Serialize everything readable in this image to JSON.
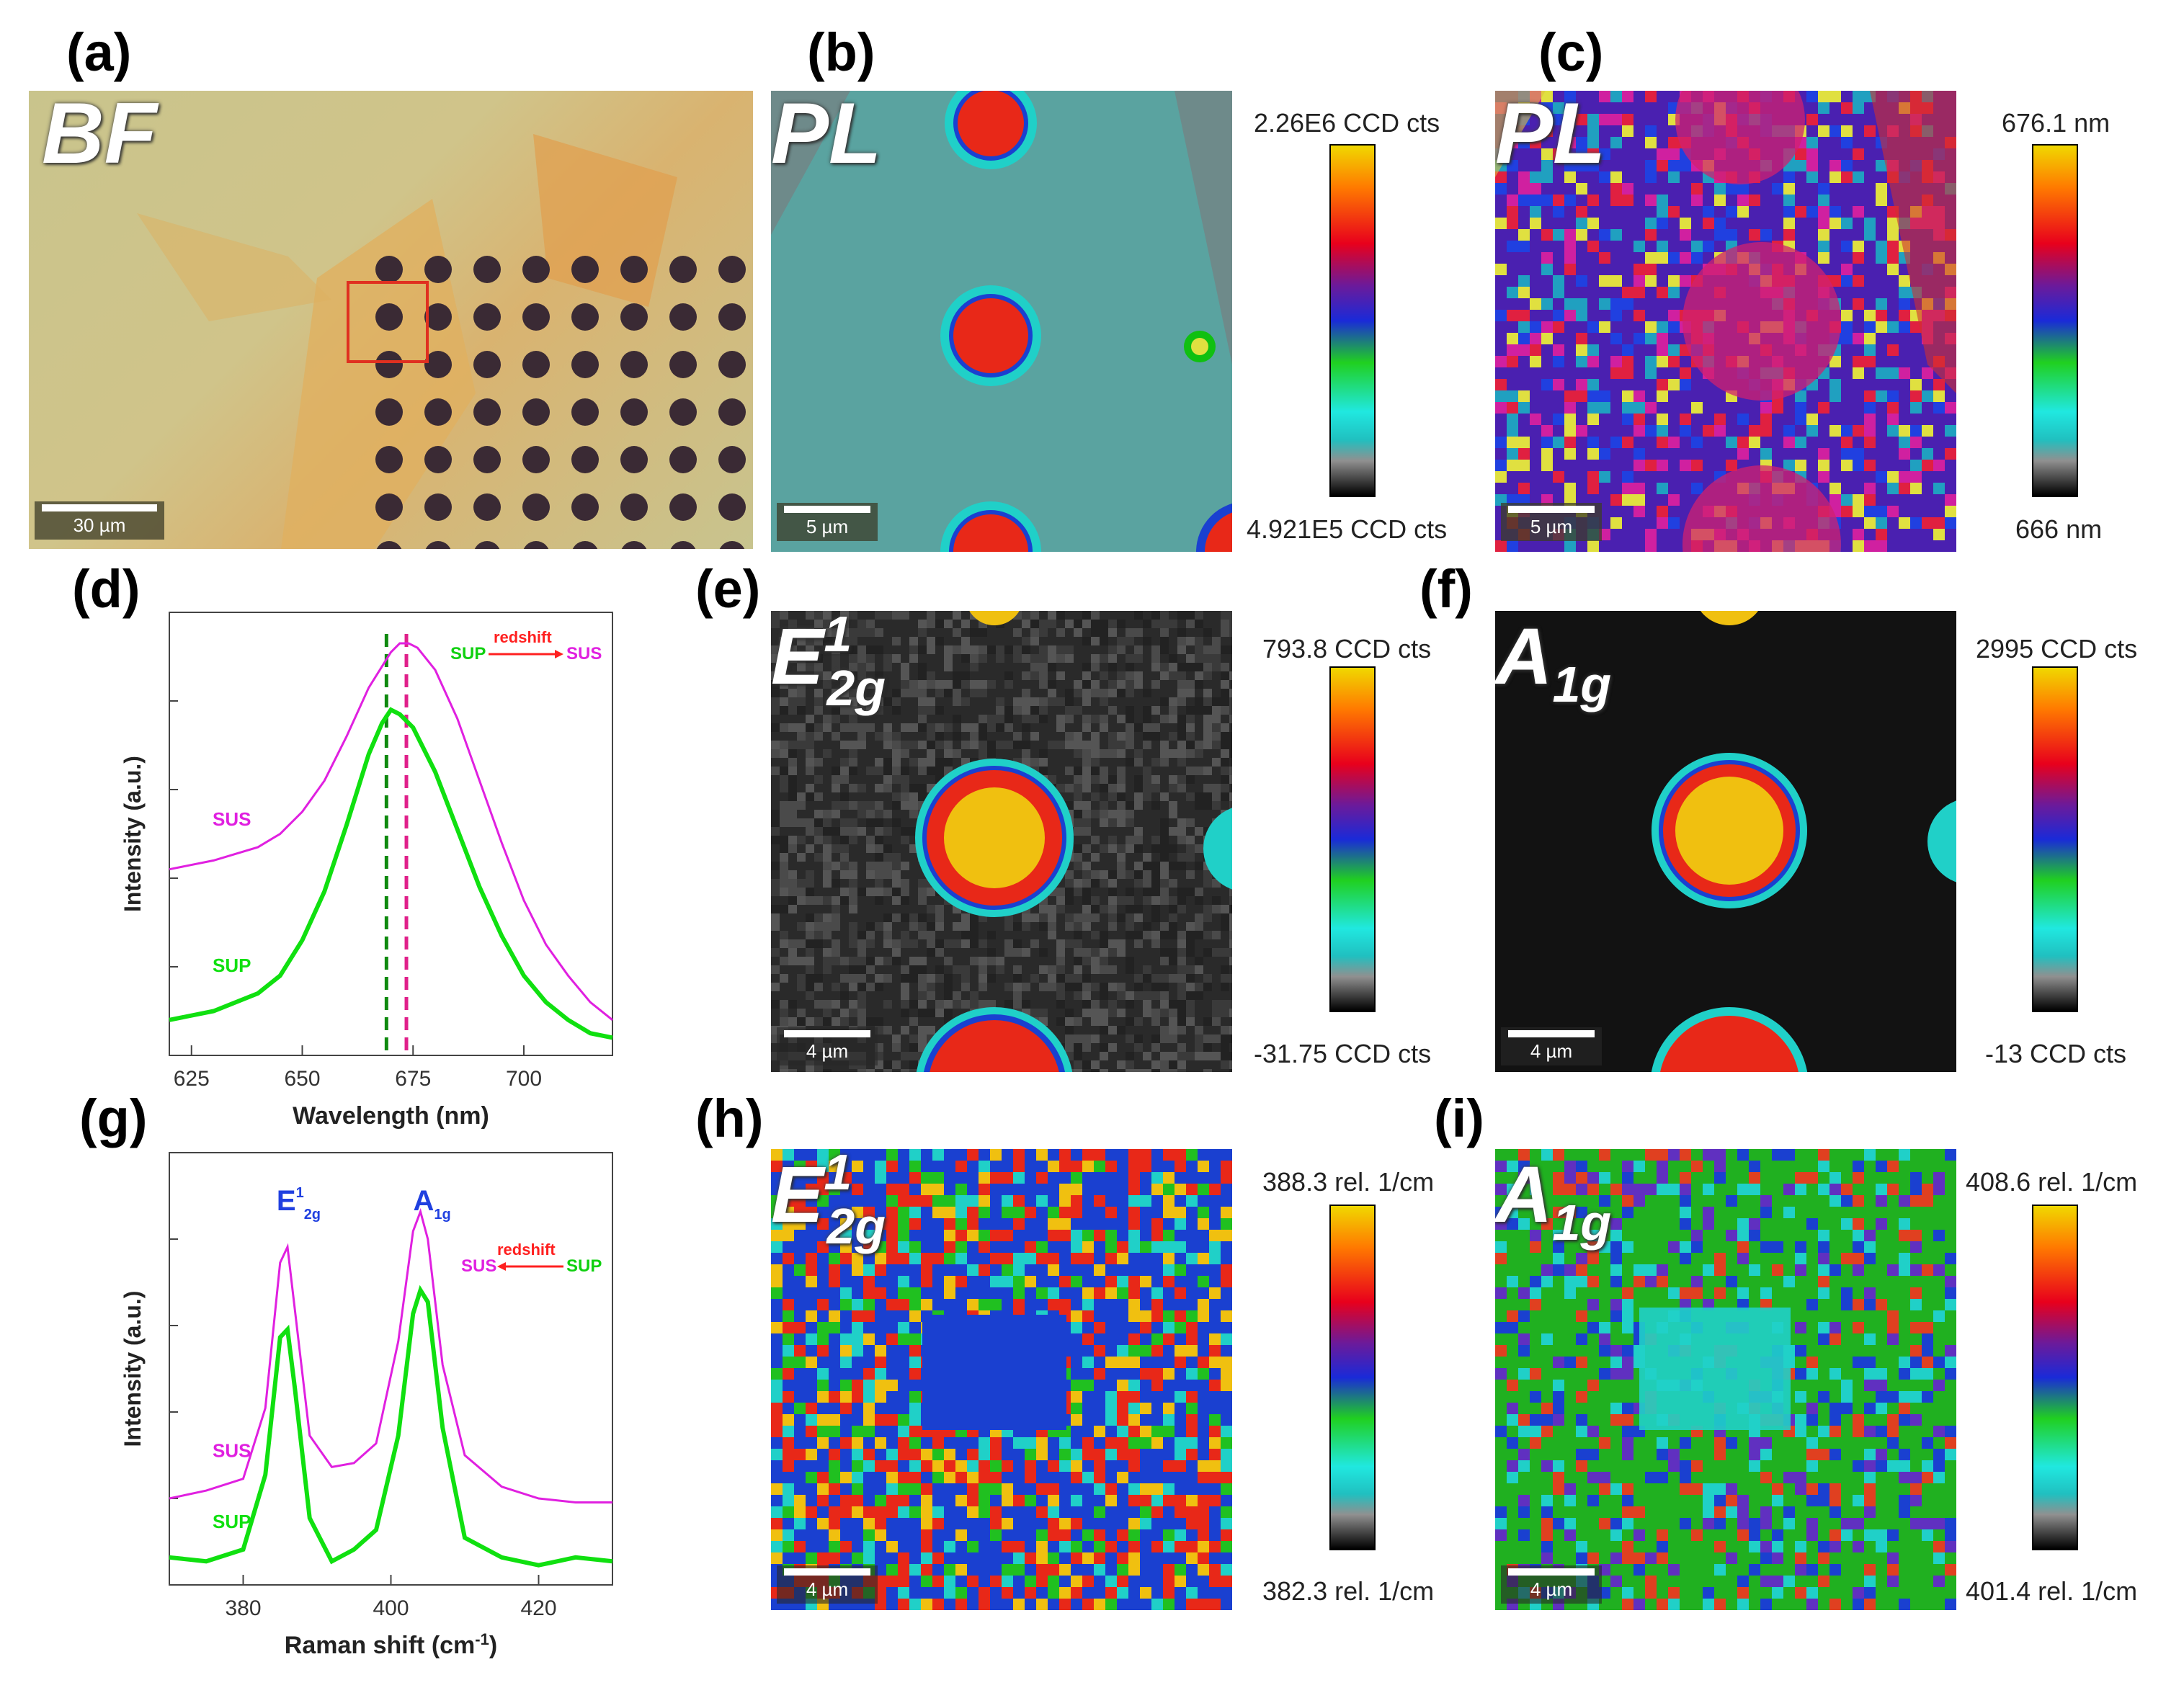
{
  "panels": {
    "a": {
      "label": "(a)",
      "mode": "BF",
      "scale": "30 µm"
    },
    "b": {
      "label": "(b)",
      "mode": "PL",
      "scale": "5 µm",
      "cbar_max": "2.26E6 CCD cts",
      "cbar_min": "4.921E5 CCD cts"
    },
    "c": {
      "label": "(c)",
      "mode": "PL",
      "scale": "5 µm",
      "cbar_max": "676.1 nm",
      "cbar_min": "666 nm"
    },
    "d": {
      "label": "(d)"
    },
    "e": {
      "label": "(e)",
      "mode_main": "E",
      "mode_sup": "1",
      "mode_sub": "2g",
      "scale": "4 µm",
      "cbar_max": "793.8 CCD cts",
      "cbar_min": "-31.75 CCD cts"
    },
    "f": {
      "label": "(f)",
      "mode_main": "A",
      "mode_sub": "1g",
      "scale": "4 µm",
      "cbar_max": "2995 CCD cts",
      "cbar_min": "-13 CCD cts"
    },
    "g": {
      "label": "(g)"
    },
    "h": {
      "label": "(h)",
      "mode_main": "E",
      "mode_sup": "1",
      "mode_sub": "2g",
      "scale": "4 µm",
      "cbar_max": "388.3 rel. 1/cm",
      "cbar_min": "382.3 rel. 1/cm"
    },
    "i": {
      "label": "(i)",
      "mode_main": "A",
      "mode_sub": "1g",
      "scale": "4 µm",
      "cbar_max": "408.6 rel. 1/cm",
      "cbar_min": "401.4 rel. 1/cm"
    }
  },
  "chart_data": [
    {
      "panel": "d",
      "type": "line",
      "xlabel": "Wavelength (nm)",
      "ylabel": "Intensity (a.u.)",
      "xlim": [
        620,
        720
      ],
      "xticks": [
        625,
        650,
        675,
        700
      ],
      "series": [
        {
          "name": "SUS",
          "color": "#e020e0",
          "x": [
            620,
            630,
            640,
            645,
            650,
            655,
            660,
            665,
            670,
            672,
            674,
            676,
            680,
            685,
            690,
            695,
            700,
            705,
            710,
            715,
            720
          ],
          "y": [
            0.42,
            0.44,
            0.47,
            0.5,
            0.55,
            0.62,
            0.72,
            0.83,
            0.91,
            0.93,
            0.93,
            0.92,
            0.87,
            0.76,
            0.62,
            0.48,
            0.35,
            0.25,
            0.18,
            0.12,
            0.08
          ]
        },
        {
          "name": "SUP",
          "color": "#10e010",
          "x": [
            620,
            630,
            640,
            645,
            650,
            655,
            660,
            665,
            668,
            670,
            672,
            675,
            680,
            685,
            690,
            695,
            700,
            705,
            710,
            715,
            720
          ],
          "y": [
            0.08,
            0.1,
            0.14,
            0.18,
            0.26,
            0.37,
            0.52,
            0.68,
            0.75,
            0.78,
            0.77,
            0.74,
            0.64,
            0.51,
            0.38,
            0.27,
            0.18,
            0.12,
            0.08,
            0.05,
            0.04
          ]
        }
      ],
      "vlines": [
        {
          "x": 669,
          "color": "#108a10"
        },
        {
          "x": 673.5,
          "color": "#e0208a"
        }
      ],
      "annotation": {
        "from": "SUP",
        "to": "SUS",
        "text": "redshift"
      }
    },
    {
      "panel": "g",
      "type": "line",
      "xlabel": "Raman shift (cm",
      "xlabel_sup": "-1",
      "xlabel_end": ")",
      "ylabel": "Intensity (a.u.)",
      "xlim": [
        370,
        430
      ],
      "xticks": [
        380,
        400,
        420
      ],
      "peak_labels": [
        {
          "main": "E",
          "sup": "1",
          "sub": "2g",
          "x": 385.5
        },
        {
          "main": "A",
          "sub": "1g",
          "x": 404
        }
      ],
      "series": [
        {
          "name": "SUS",
          "color": "#e020e0",
          "x": [
            370,
            375,
            380,
            383,
            385,
            386,
            387,
            389,
            392,
            395,
            398,
            401,
            403,
            404,
            405,
            407,
            410,
            415,
            420,
            425,
            430
          ],
          "y": [
            0.22,
            0.24,
            0.27,
            0.45,
            0.82,
            0.86,
            0.7,
            0.38,
            0.3,
            0.31,
            0.36,
            0.62,
            0.9,
            0.95,
            0.88,
            0.56,
            0.33,
            0.25,
            0.22,
            0.21,
            0.21
          ]
        },
        {
          "name": "SUP",
          "color": "#10e010",
          "x": [
            370,
            375,
            380,
            383,
            385,
            386,
            387,
            389,
            392,
            395,
            398,
            401,
            403,
            404,
            405,
            407,
            410,
            415,
            420,
            425,
            430
          ],
          "y": [
            0.07,
            0.06,
            0.09,
            0.28,
            0.63,
            0.65,
            0.5,
            0.17,
            0.06,
            0.09,
            0.14,
            0.38,
            0.69,
            0.75,
            0.72,
            0.4,
            0.12,
            0.07,
            0.05,
            0.07,
            0.06
          ]
        }
      ],
      "annotation": {
        "from": "SUP",
        "to": "SUS",
        "text": "redshift"
      }
    }
  ]
}
